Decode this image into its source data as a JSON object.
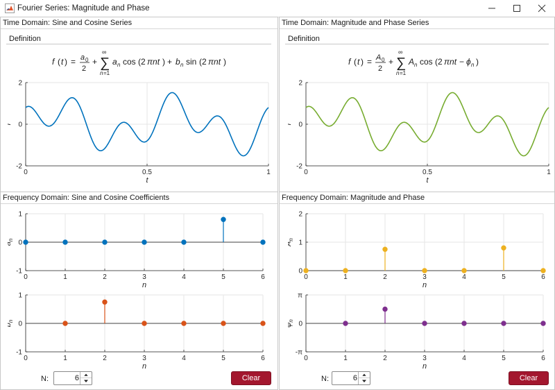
{
  "window": {
    "title": "Fourier Series: Magnitude and Phase"
  },
  "panels": {
    "tl": {
      "title": "Time Domain: Sine and Cosine Series",
      "definition_label": "Definition"
    },
    "tr": {
      "title": "Time Domain: Magnitude and Phase Series",
      "definition_label": "Definition"
    },
    "bl": {
      "title": "Frequency Domain: Sine and Cosine Coefficients"
    },
    "br": {
      "title": "Frequency Domain: Magnitude and Phase"
    }
  },
  "controls": {
    "left": {
      "n_label": "N:",
      "n_value": "6",
      "clear_label": "Clear"
    },
    "right": {
      "n_label": "N:",
      "n_value": "6",
      "clear_label": "Clear"
    }
  },
  "colors": {
    "blue": "#1f77b4",
    "green": "#77ac30",
    "orange": "#d95319",
    "yellow": "#edb120",
    "purple": "#7e2f8e",
    "clear_button": "#a3172e"
  },
  "icons": {
    "app": "matlab-icon",
    "minimize": "minimize-icon",
    "maximize": "maximize-icon",
    "close": "close-icon",
    "spin_up": "chevron-up-icon",
    "spin_down": "chevron-down-icon"
  },
  "chart_data": [
    {
      "id": "time-sincos",
      "type": "line",
      "xlabel": "t",
      "ylabel": "f",
      "xlim": [
        0,
        1
      ],
      "ylim": [
        -2,
        2
      ],
      "xticks": [
        "0",
        "0.5",
        "1"
      ],
      "yticks": [
        "2",
        "0",
        "-2"
      ],
      "terms": {
        "a": [
          0,
          0,
          0,
          0,
          0.8
        ],
        "b": [
          0,
          0.75,
          0,
          0,
          0
        ]
      },
      "series": [
        {
          "color": "#0072bd"
        }
      ]
    },
    {
      "id": "time-magphase",
      "type": "line",
      "xlabel": "t",
      "ylabel": "f",
      "xlim": [
        0,
        1
      ],
      "ylim": [
        -2,
        2
      ],
      "xticks": [
        "0",
        "0.5",
        "1"
      ],
      "yticks": [
        "2",
        "0",
        "-2"
      ],
      "terms": {
        "a": [
          0,
          0,
          0,
          0,
          0.8
        ],
        "b": [
          0,
          0.75,
          0,
          0,
          0
        ]
      },
      "series": [
        {
          "color": "#77ac30"
        }
      ]
    },
    {
      "id": "an",
      "type": "stem",
      "xlabel": "n",
      "ylabel": "a_n",
      "xlim": [
        0,
        6
      ],
      "ylim": [
        -1,
        1
      ],
      "xticks": [
        "0",
        "1",
        "2",
        "3",
        "4",
        "5",
        "6"
      ],
      "yticks": [
        "1",
        "0",
        "-1"
      ],
      "x": [
        0,
        1,
        2,
        3,
        4,
        5,
        6
      ],
      "values": [
        0,
        0,
        0,
        0,
        0,
        0.8,
        0
      ],
      "color": "#0072bd"
    },
    {
      "id": "bn",
      "type": "stem",
      "xlabel": "n",
      "ylabel": "b_n",
      "xlim": [
        0,
        6
      ],
      "ylim": [
        -1,
        1
      ],
      "xticks": [
        "0",
        "1",
        "2",
        "3",
        "4",
        "5",
        "6"
      ],
      "yticks": [
        "1",
        "0",
        "-1"
      ],
      "x": [
        1,
        2,
        3,
        4,
        5,
        6
      ],
      "values": [
        0,
        0.75,
        0,
        0,
        0,
        0
      ],
      "color": "#d95319"
    },
    {
      "id": "An",
      "type": "stem",
      "xlabel": "n",
      "ylabel": "A_n",
      "xlim": [
        0,
        6
      ],
      "ylim": [
        0,
        2
      ],
      "xticks": [
        "0",
        "1",
        "2",
        "3",
        "4",
        "5",
        "6"
      ],
      "yticks": [
        "2",
        "1",
        "0"
      ],
      "x": [
        0,
        1,
        2,
        3,
        4,
        5,
        6
      ],
      "values": [
        0,
        0,
        0.75,
        0,
        0,
        0.8,
        0
      ],
      "color": "#edb120"
    },
    {
      "id": "phin",
      "type": "stem",
      "xlabel": "n",
      "ylabel": "φ_n",
      "xlim": [
        0,
        6
      ],
      "ylim": [
        -3.1416,
        3.1416
      ],
      "xticks": [
        "0",
        "1",
        "2",
        "3",
        "4",
        "5",
        "6"
      ],
      "yticks": [
        "π",
        "0",
        "-π"
      ],
      "x": [
        1,
        2,
        3,
        4,
        5,
        6
      ],
      "values": [
        0,
        1.5708,
        0,
        0,
        0,
        0
      ],
      "color": "#7e2f8e"
    }
  ]
}
